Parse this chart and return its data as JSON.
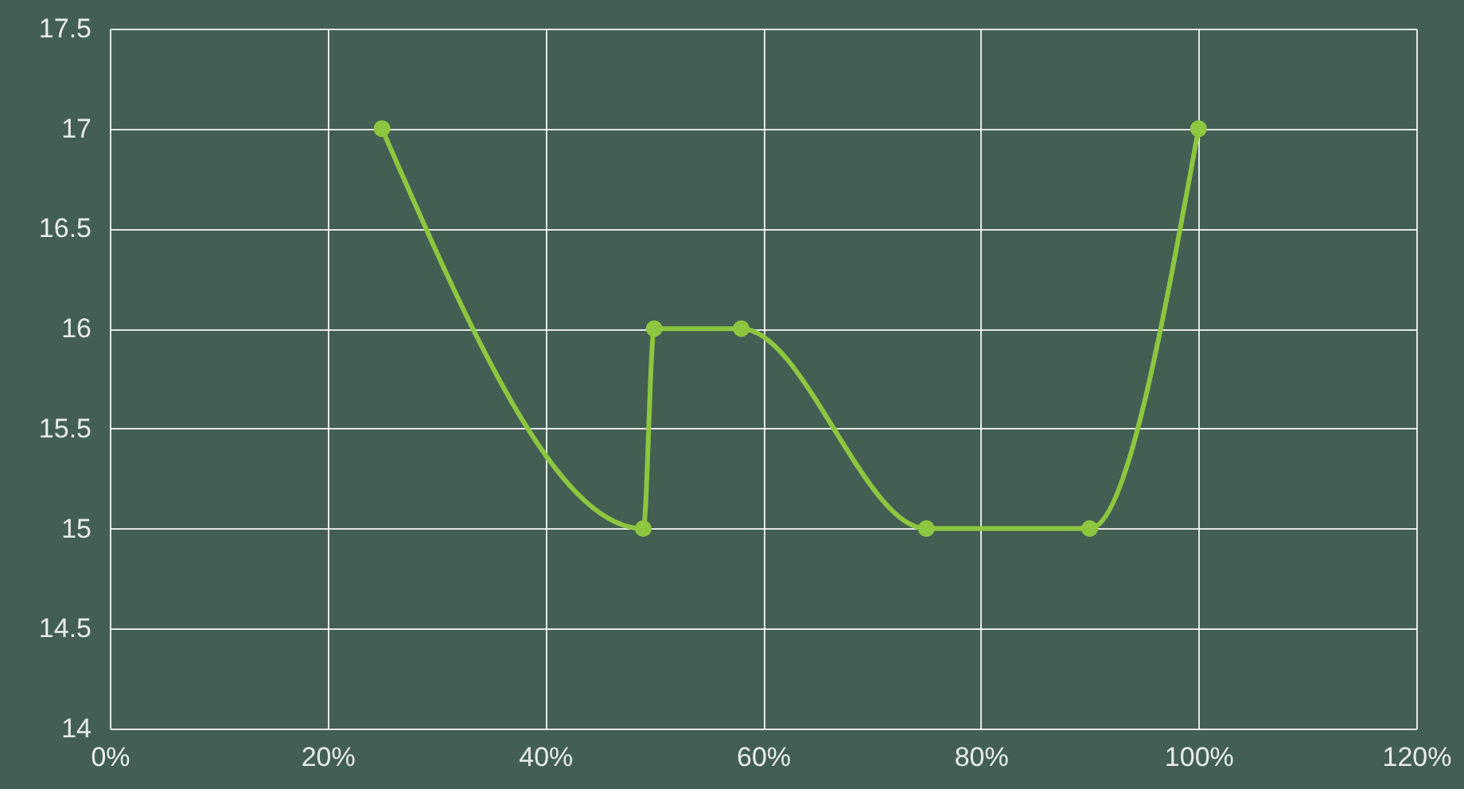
{
  "chart_data": {
    "type": "line",
    "x": [
      25,
      49,
      50,
      58,
      75,
      90,
      100
    ],
    "series": [
      {
        "color": "#8dc63f",
        "values": [
          17,
          15,
          16,
          16,
          15,
          15,
          17
        ]
      }
    ],
    "xlim": [
      0,
      120
    ],
    "xticks": [
      {
        "value": 0,
        "label": "0%"
      },
      {
        "value": 20,
        "label": "20%"
      },
      {
        "value": 40,
        "label": "40%"
      },
      {
        "value": 60,
        "label": "60%"
      },
      {
        "value": 80,
        "label": "80%"
      },
      {
        "value": 100,
        "label": "100%"
      },
      {
        "value": 120,
        "label": "120%"
      }
    ],
    "ylim": [
      14,
      17.5
    ],
    "yticks": [
      14,
      14.5,
      15,
      15.5,
      16,
      16.5,
      17,
      17.5
    ],
    "grid": true,
    "marker": "circle"
  }
}
